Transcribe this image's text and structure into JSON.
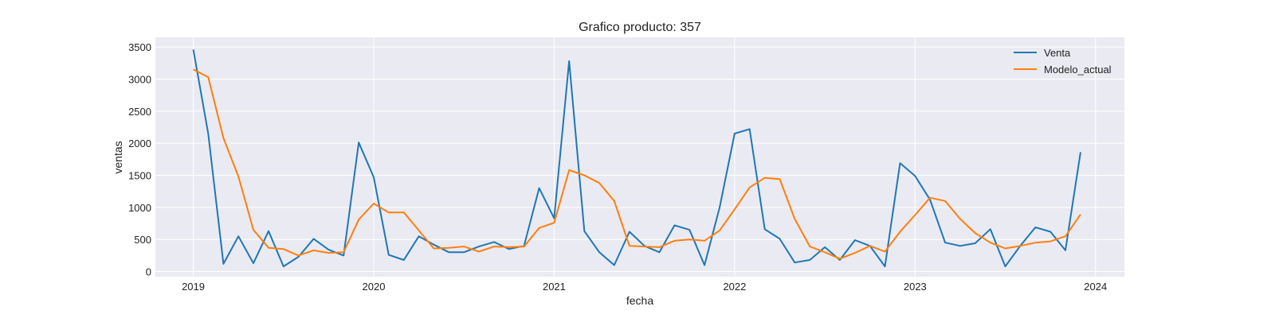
{
  "chart_data": {
    "type": "line",
    "title": "Grafico producto: 357",
    "xlabel": "fecha",
    "ylabel": "ventas",
    "xlim": [
      2018.79,
      2024.16
    ],
    "ylim": [
      -80,
      3650
    ],
    "x_ticks": [
      2019,
      2020,
      2021,
      2022,
      2023,
      2024
    ],
    "x_tick_labels": [
      "2019",
      "2020",
      "2021",
      "2022",
      "2023",
      "2024"
    ],
    "y_ticks": [
      0,
      500,
      1000,
      1500,
      2000,
      2500,
      3000,
      3500
    ],
    "y_tick_labels": [
      "0",
      "500",
      "1000",
      "1500",
      "2000",
      "2500",
      "3000",
      "3500"
    ],
    "grid": true,
    "legend_position": "top-right",
    "background_color": "#eaeaf2",
    "x": [
      2019.0,
      2019.083,
      2019.167,
      2019.25,
      2019.333,
      2019.417,
      2019.5,
      2019.583,
      2019.667,
      2019.75,
      2019.833,
      2019.917,
      2020.0,
      2020.083,
      2020.167,
      2020.25,
      2020.333,
      2020.417,
      2020.5,
      2020.583,
      2020.667,
      2020.75,
      2020.833,
      2020.917,
      2021.0,
      2021.083,
      2021.167,
      2021.25,
      2021.333,
      2021.417,
      2021.5,
      2021.583,
      2021.667,
      2021.75,
      2021.833,
      2021.917,
      2022.0,
      2022.083,
      2022.167,
      2022.25,
      2022.333,
      2022.417,
      2022.5,
      2022.583,
      2022.667,
      2022.75,
      2022.833,
      2022.917,
      2023.0,
      2023.083,
      2023.167,
      2023.25,
      2023.333,
      2023.417,
      2023.5,
      2023.583,
      2023.667,
      2023.75,
      2023.833,
      2023.917
    ],
    "series": [
      {
        "name": "Venta",
        "color": "#1f77b4",
        "values": [
          3460,
          2150,
          120,
          550,
          130,
          630,
          80,
          230,
          510,
          340,
          250,
          2010,
          1470,
          260,
          180,
          550,
          420,
          300,
          300,
          390,
          460,
          350,
          400,
          1300,
          830,
          3280,
          630,
          300,
          100,
          620,
          400,
          300,
          720,
          650,
          100,
          1000,
          2150,
          2220,
          660,
          510,
          140,
          180,
          380,
          180,
          490,
          400,
          80,
          1690,
          1490,
          1120,
          450,
          400,
          440,
          660,
          80,
          400,
          690,
          620,
          330,
          1860
        ]
      },
      {
        "name": "Modelo_actual",
        "color": "#ff7f0e",
        "values": [
          3150,
          3030,
          2080,
          1480,
          650,
          370,
          350,
          250,
          330,
          290,
          300,
          810,
          1060,
          920,
          920,
          640,
          360,
          370,
          390,
          310,
          390,
          380,
          390,
          680,
          760,
          1580,
          1500,
          1380,
          1100,
          400,
          390,
          380,
          480,
          500,
          480,
          640,
          970,
          1310,
          1460,
          1440,
          820,
          390,
          300,
          200,
          290,
          400,
          310,
          620,
          880,
          1150,
          1100,
          820,
          600,
          450,
          360,
          400,
          450,
          470,
          550,
          890
        ]
      }
    ]
  }
}
